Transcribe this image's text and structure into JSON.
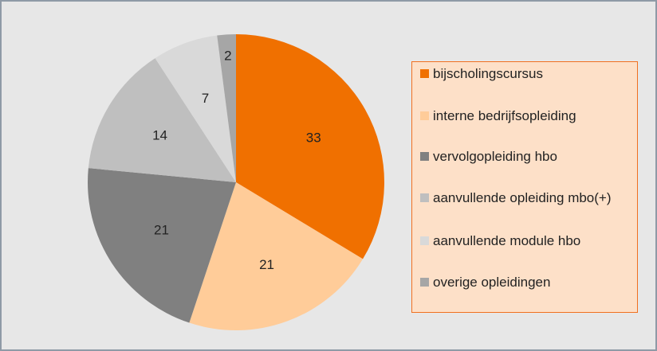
{
  "chart_data": {
    "type": "pie",
    "categories": [
      "bijscholingscursus",
      "interne bedrijfsopleiding",
      "vervolgopleiding hbo",
      "aanvullende opleiding mbo(+)",
      "aanvullende module hbo",
      "overige opleidingen"
    ],
    "values": [
      33,
      21,
      21,
      14,
      7,
      2
    ],
    "colors": [
      "#f07000",
      "#ffcc99",
      "#808080",
      "#bfbfbf",
      "#d9d9d9",
      "#a6a6a6"
    ],
    "legend": "right"
  }
}
